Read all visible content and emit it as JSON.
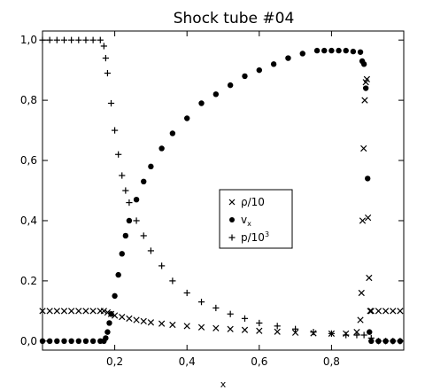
{
  "chart_data": {
    "type": "scatter",
    "title": "Shock tube #04",
    "xlabel": "x",
    "ylabel": "",
    "xlim": [
      0.0,
      1.0
    ],
    "ylim": [
      -0.03,
      1.03
    ],
    "xticks": [
      0.2,
      0.4,
      0.6,
      0.8
    ],
    "xtick_labels": [
      "0,2",
      "0,4",
      "0,6",
      "0,8"
    ],
    "yticks": [
      0.0,
      0.2,
      0.4,
      0.6,
      0.8,
      1.0
    ],
    "ytick_labels": [
      "0,0",
      "0.2",
      "0,4",
      "0,6",
      "0,8",
      "1,0"
    ],
    "grid": false,
    "legend_position": "center-right",
    "series": [
      {
        "name": "ρ/10",
        "marker": "x",
        "x": [
          0.0,
          0.02,
          0.04,
          0.06,
          0.08,
          0.1,
          0.12,
          0.14,
          0.16,
          0.17,
          0.18,
          0.19,
          0.2,
          0.22,
          0.24,
          0.26,
          0.28,
          0.3,
          0.33,
          0.36,
          0.4,
          0.44,
          0.48,
          0.52,
          0.56,
          0.6,
          0.65,
          0.7,
          0.75,
          0.8,
          0.84,
          0.87,
          0.88,
          0.883,
          0.886,
          0.889,
          0.892,
          0.895,
          0.898,
          0.901,
          0.904,
          0.907,
          0.91,
          0.93,
          0.95,
          0.97,
          0.99
        ],
        "y": [
          0.1,
          0.1,
          0.1,
          0.1,
          0.1,
          0.1,
          0.1,
          0.1,
          0.1,
          0.1,
          0.095,
          0.09,
          0.085,
          0.08,
          0.075,
          0.07,
          0.066,
          0.062,
          0.058,
          0.054,
          0.05,
          0.046,
          0.043,
          0.04,
          0.037,
          0.034,
          0.031,
          0.028,
          0.026,
          0.025,
          0.025,
          0.03,
          0.07,
          0.16,
          0.4,
          0.64,
          0.8,
          0.86,
          0.87,
          0.41,
          0.21,
          0.1,
          0.1,
          0.1,
          0.1,
          0.1,
          0.1
        ]
      },
      {
        "name": "v",
        "marker": "dot",
        "x": [
          0.0,
          0.02,
          0.04,
          0.06,
          0.08,
          0.1,
          0.12,
          0.14,
          0.16,
          0.17,
          0.175,
          0.18,
          0.185,
          0.19,
          0.2,
          0.21,
          0.22,
          0.23,
          0.24,
          0.26,
          0.28,
          0.3,
          0.33,
          0.36,
          0.4,
          0.44,
          0.48,
          0.52,
          0.56,
          0.6,
          0.64,
          0.68,
          0.72,
          0.76,
          0.78,
          0.8,
          0.82,
          0.84,
          0.86,
          0.88,
          0.885,
          0.89,
          0.895,
          0.9,
          0.905,
          0.91,
          0.93,
          0.95,
          0.97,
          0.99
        ],
        "y": [
          0.0,
          0.0,
          0.0,
          0.0,
          0.0,
          0.0,
          0.0,
          0.0,
          0.0,
          0.0,
          0.01,
          0.03,
          0.06,
          0.09,
          0.15,
          0.22,
          0.29,
          0.35,
          0.4,
          0.47,
          0.53,
          0.58,
          0.64,
          0.69,
          0.74,
          0.79,
          0.82,
          0.85,
          0.88,
          0.9,
          0.92,
          0.94,
          0.955,
          0.965,
          0.965,
          0.965,
          0.965,
          0.965,
          0.962,
          0.96,
          0.93,
          0.92,
          0.84,
          0.54,
          0.03,
          0.0,
          0.0,
          0.0,
          0.0,
          0.0
        ]
      },
      {
        "name": "p/10³",
        "marker": "plus",
        "x": [
          0.0,
          0.02,
          0.04,
          0.06,
          0.08,
          0.1,
          0.12,
          0.14,
          0.16,
          0.17,
          0.175,
          0.18,
          0.19,
          0.2,
          0.21,
          0.22,
          0.23,
          0.24,
          0.26,
          0.28,
          0.3,
          0.33,
          0.36,
          0.4,
          0.44,
          0.48,
          0.52,
          0.56,
          0.6,
          0.65,
          0.7,
          0.75,
          0.8,
          0.84,
          0.87,
          0.89,
          0.91,
          0.93,
          0.95,
          0.97,
          0.99
        ],
        "y": [
          1.0,
          1.0,
          1.0,
          1.0,
          1.0,
          1.0,
          1.0,
          1.0,
          1.0,
          0.98,
          0.94,
          0.89,
          0.79,
          0.7,
          0.62,
          0.55,
          0.5,
          0.46,
          0.4,
          0.35,
          0.3,
          0.25,
          0.2,
          0.16,
          0.13,
          0.11,
          0.09,
          0.075,
          0.06,
          0.05,
          0.04,
          0.03,
          0.025,
          0.02,
          0.02,
          0.02,
          0.01,
          0.0,
          0.0,
          0.0,
          0.0
        ]
      }
    ]
  },
  "legend": {
    "items": [
      {
        "label": "ρ/10",
        "marker": "x"
      },
      {
        "label": "v",
        "sub": "x",
        "marker": "dot"
      },
      {
        "label": "p/10",
        "sup": "3",
        "marker": "plus"
      }
    ]
  }
}
